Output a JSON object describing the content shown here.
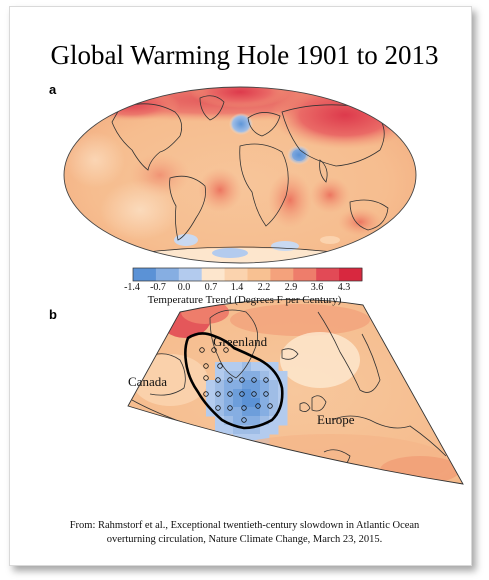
{
  "title": "Global Warming Hole 1901 to 2013",
  "panels": {
    "a": "a",
    "b": "b"
  },
  "colorbar": {
    "title": "Temperature Trend (Degrees F per Century)",
    "ticks": [
      "-1.4",
      "-0.7",
      "0.0",
      "0.7",
      "1.4",
      "2.2",
      "2.9",
      "3.6",
      "4.3"
    ],
    "colors": [
      "#5b92d6",
      "#86aee2",
      "#b3cbee",
      "#fde6cd",
      "#fbd3ae",
      "#f8c192",
      "#f4a27c",
      "#ee7d6b",
      "#e24a56",
      "#d8283f"
    ]
  },
  "map_labels": {
    "greenland": "Greenland",
    "canada": "Canada",
    "europe": "Europe"
  },
  "citation": {
    "line1": "From: Rahmstorf et al., Exceptional twentieth-century slowdown in Atlantic Ocean",
    "line2": "overturning circulation, Nature Climate Change, March 23, 2015."
  }
}
